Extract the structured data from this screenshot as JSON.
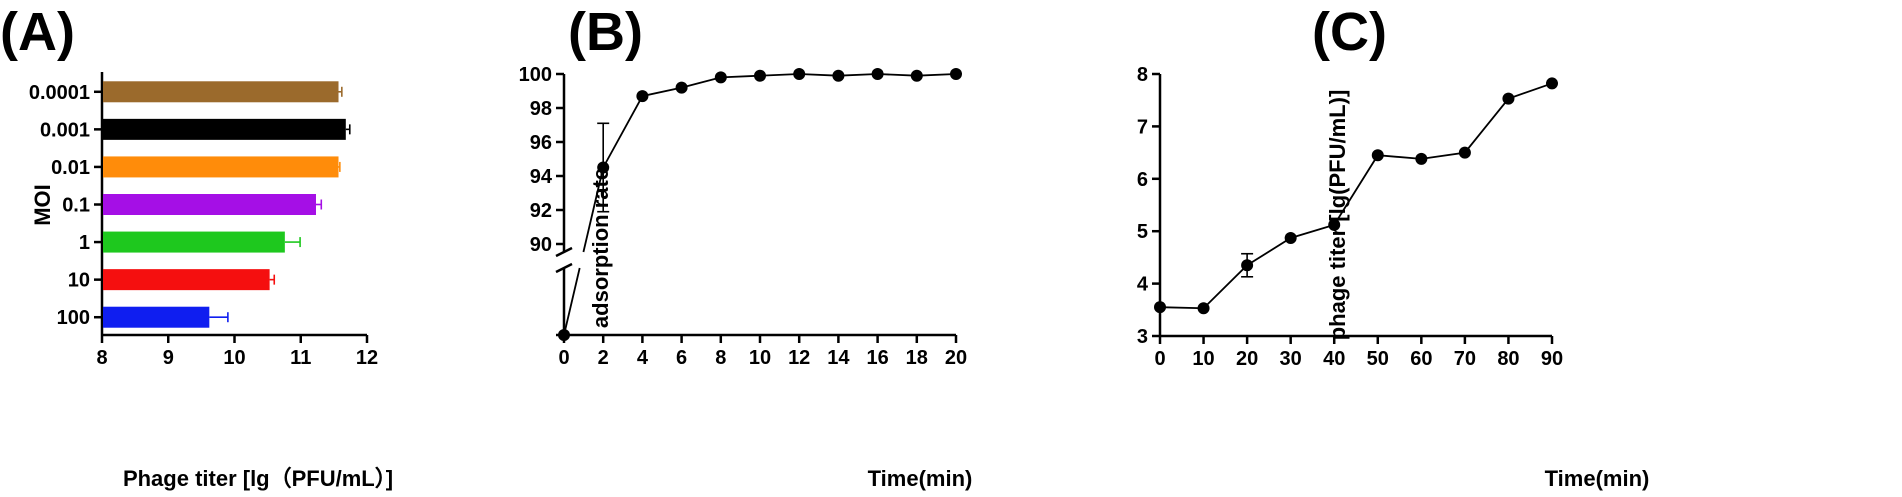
{
  "panels": {
    "A": {
      "letter": "(A)"
    },
    "B": {
      "letter": "(B)"
    },
    "C": {
      "letter": "(C)"
    }
  },
  "chart_data": [
    {
      "type": "bar",
      "orientation": "horizontal",
      "xlabel": "Phage titer [lg（PFU/mL）]",
      "ylabel": "MOI",
      "categories": [
        "0.0001",
        "0.001",
        "0.01",
        "0.1",
        "1",
        "10",
        "100"
      ],
      "values": [
        11.57,
        11.68,
        11.57,
        11.23,
        10.76,
        10.53,
        9.62
      ],
      "errors": [
        0.05,
        0.06,
        0.02,
        0.08,
        0.23,
        0.07,
        0.28
      ],
      "colors": [
        "#9b6a2c",
        "#000000",
        "#ff8c0a",
        "#a50fe6",
        "#1ec81e",
        "#f50f0f",
        "#0f1ef0"
      ],
      "xlim": [
        8,
        12
      ],
      "xticks": [
        "8",
        "9",
        "10",
        "11",
        "12"
      ],
      "grid": false
    },
    {
      "type": "line",
      "xlabel": "Time(min)",
      "ylabel": "adsorption rate",
      "x": [
        0,
        2,
        4,
        6,
        8,
        10,
        12,
        14,
        16,
        18,
        20
      ],
      "y": [
        null,
        94.5,
        98.7,
        99.2,
        99.8,
        99.9,
        100.0,
        99.9,
        100.0,
        99.9,
        100.0
      ],
      "errors": [
        0,
        2.6,
        0,
        0,
        0,
        0,
        0,
        0,
        0,
        0,
        0
      ],
      "first_point_below_break": true,
      "ylim_upper": [
        90,
        100
      ],
      "axis_break": true,
      "xticks": [
        "0",
        "2",
        "4",
        "6",
        "8",
        "10",
        "12",
        "14",
        "16",
        "18",
        "20"
      ],
      "yticks": [
        "90",
        "92",
        "94",
        "96",
        "98",
        "100"
      ],
      "grid": false
    },
    {
      "type": "line",
      "xlabel": "Time(min)",
      "ylabel": "phage titer [lg(PFU/mL)]",
      "x": [
        0,
        10,
        20,
        30,
        40,
        50,
        60,
        70,
        80,
        90
      ],
      "y": [
        3.55,
        3.53,
        4.35,
        4.87,
        5.12,
        6.45,
        6.38,
        6.5,
        7.53,
        7.82
      ],
      "errors": [
        0,
        0,
        0.22,
        0,
        0,
        0,
        0,
        0,
        0,
        0
      ],
      "ylim": [
        3,
        8
      ],
      "xticks": [
        "0",
        "10",
        "20",
        "30",
        "40",
        "50",
        "60",
        "70",
        "80",
        "90"
      ],
      "yticks": [
        "3",
        "4",
        "5",
        "6",
        "7",
        "8"
      ],
      "grid": false
    }
  ]
}
